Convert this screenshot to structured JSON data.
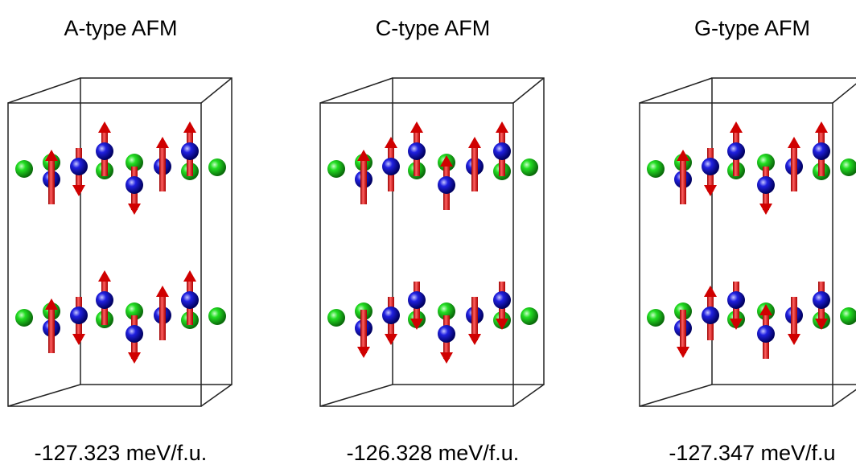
{
  "panels": [
    {
      "title": "A-type AFM",
      "energy": "-127.323 meV/f.u."
    },
    {
      "title": "C-type AFM",
      "energy": "-126.328 meV/f.u."
    },
    {
      "title": "G-type AFM",
      "energy": "-127.347 meV/f.u"
    }
  ]
}
